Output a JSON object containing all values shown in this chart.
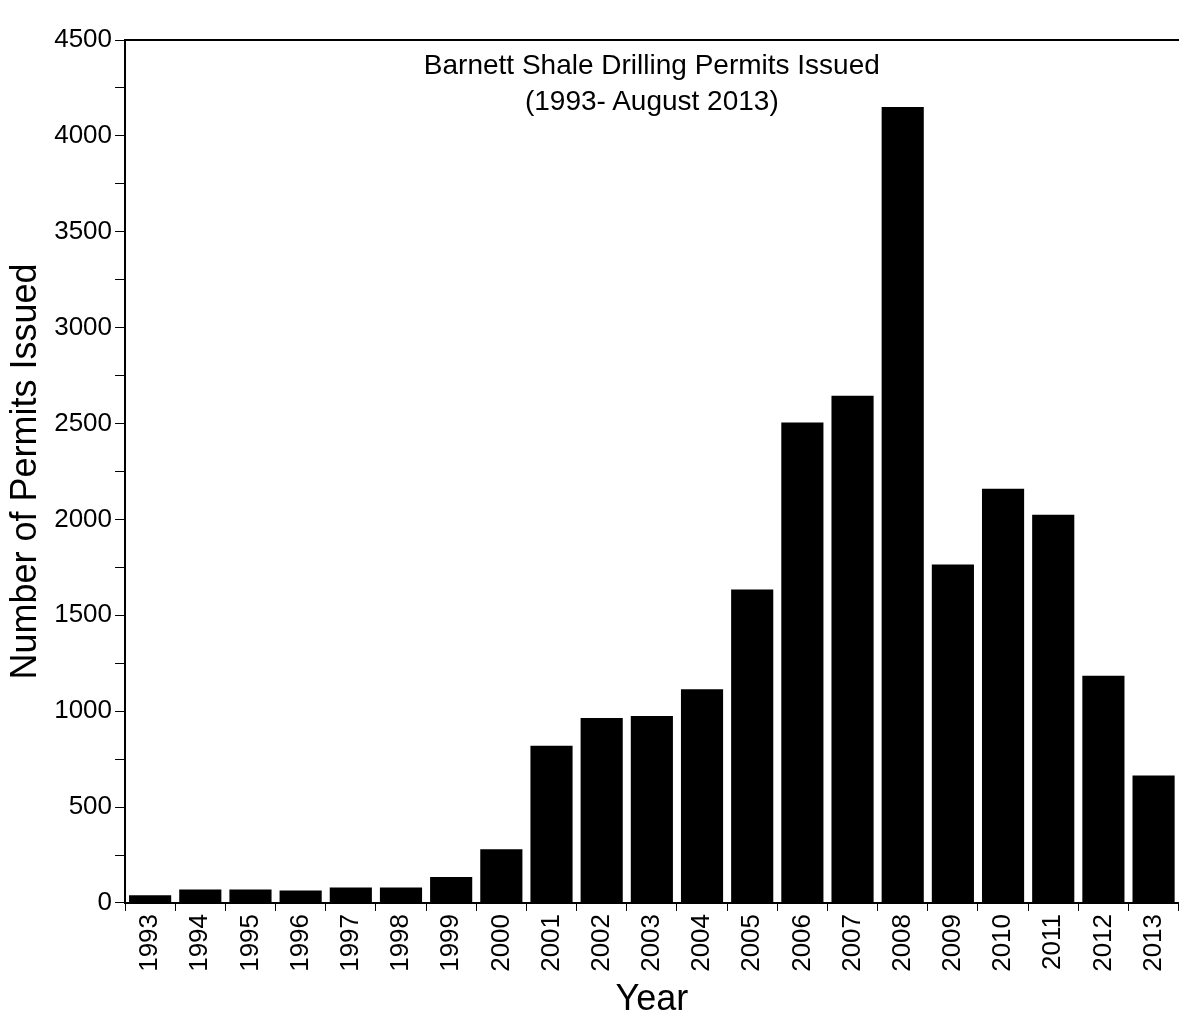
{
  "chart_data": {
    "type": "bar",
    "title": "Barnett Shale Drilling Permits Issued",
    "subtitle": "(1993- August 2013)",
    "xlabel": "Year",
    "ylabel": "Number of Permits Issued",
    "categories": [
      "1993",
      "1994",
      "1995",
      "1996",
      "1997",
      "1998",
      "1999",
      "2000",
      "2001",
      "2002",
      "2003",
      "2004",
      "2005",
      "2006",
      "2007",
      "2008",
      "2009",
      "2010",
      "2011",
      "2012",
      "2013"
    ],
    "values": [
      40,
      70,
      70,
      65,
      80,
      80,
      135,
      280,
      820,
      965,
      975,
      1115,
      1635,
      2505,
      2645,
      4150,
      1765,
      2160,
      2025,
      1185,
      665
    ],
    "color": "#000000",
    "ylim": [
      0,
      4500
    ],
    "yticks": [
      0,
      {
        "value": 250,
        "label": null
      },
      500,
      {
        "value": 750,
        "label": null
      },
      1000,
      {
        "value": 1250,
        "label": null
      },
      1500,
      {
        "value": 1750,
        "label": null
      },
      2000,
      {
        "value": 2250,
        "label": null
      },
      2500,
      {
        "value": 2750,
        "label": null
      },
      3000,
      {
        "value": 3250,
        "label": null
      },
      3500,
      {
        "value": 3750,
        "label": null
      },
      4000,
      {
        "value": 4250,
        "label": null
      },
      4500
    ]
  }
}
